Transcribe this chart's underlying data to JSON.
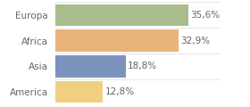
{
  "categories": [
    "Europa",
    "Africa",
    "Asia",
    "America"
  ],
  "values": [
    35.6,
    32.9,
    18.8,
    12.8
  ],
  "labels": [
    "35,6%",
    "32,9%",
    "18,8%",
    "12,8%"
  ],
  "bar_colors": [
    "#a8bc8c",
    "#e8b47a",
    "#7b93bc",
    "#f0d080"
  ],
  "background_color": "#ffffff",
  "xlim": [
    0,
    44
  ],
  "bar_height": 0.85,
  "label_fontsize": 7.5,
  "category_fontsize": 7.5,
  "label_color": "#666666",
  "tick_color": "#666666"
}
